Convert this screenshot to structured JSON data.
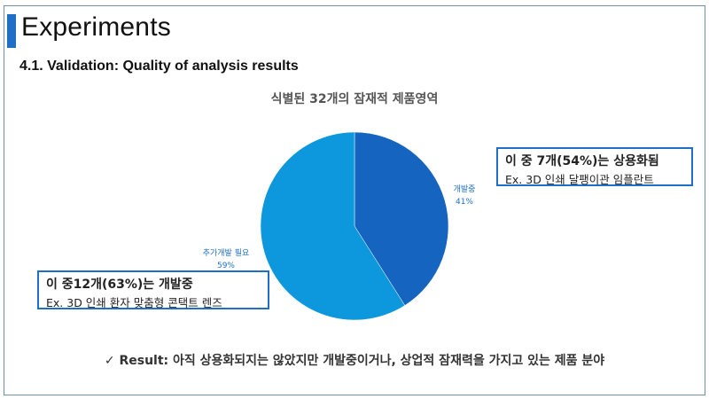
{
  "slide": {
    "title": "Experiments",
    "subtitle": "4.1. Validation: Quality of analysis results"
  },
  "chart_data": {
    "type": "pie",
    "title": "식별된 32개의 잠재적 제품영역",
    "categories": [
      "개발중",
      "추가개발 필요"
    ],
    "values": [
      41,
      59
    ],
    "value_labels": [
      "41%",
      "59%"
    ],
    "colors": [
      "#1565c0",
      "#0d97dc"
    ]
  },
  "callouts": {
    "commercialized": {
      "head": "이 중 7개(54%)는 상용화됨",
      "body": "Ex. 3D 인쇄 달팽이관 임플란트"
    },
    "developing": {
      "head": "이 중12개(63%)는 개발중",
      "body": "Ex. 3D 인쇄 환자 맞춤형 콘택트 렌즈"
    }
  },
  "result": {
    "check": "✓",
    "label": "Result:",
    "text": "아직 상용화되지는 않았지만 개발중이거나, 상업적 잠재력을 가지고 있는 제품 분야"
  }
}
